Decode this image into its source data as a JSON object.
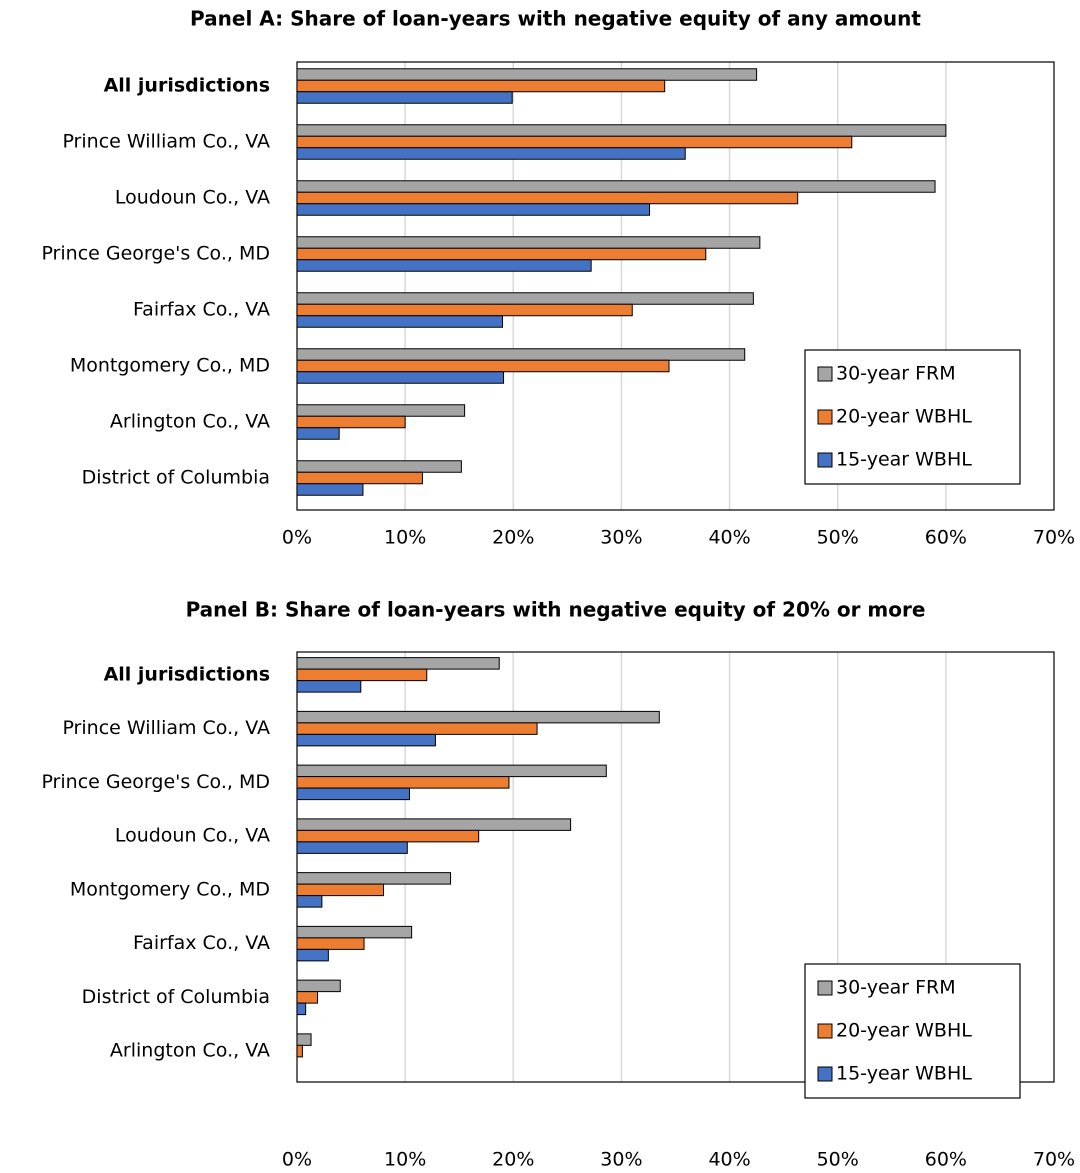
{
  "chart_data": [
    {
      "type": "hbar",
      "title": "Panel A: Share of loan-years with negative equity of any amount",
      "categories": [
        "All jurisdictions",
        "Prince William Co., VA",
        "Loudoun Co., VA",
        "Prince George's Co., MD",
        "Fairfax Co., VA",
        "Montgomery Co., MD",
        "Arlington Co., VA",
        "District of Columbia"
      ],
      "series": [
        {
          "name": "30-year FRM",
          "color": "#a5a5a5",
          "values": [
            42.5,
            60,
            59,
            42.8,
            42.2,
            41.4,
            15.5,
            15.2
          ]
        },
        {
          "name": "20-year WBHL",
          "color": "#ed7d31",
          "values": [
            34,
            51.3,
            46.3,
            37.8,
            31,
            34.4,
            10,
            11.6
          ]
        },
        {
          "name": "15-year WBHL",
          "color": "#4472c4",
          "values": [
            19.9,
            35.9,
            32.6,
            27.2,
            19,
            19.1,
            3.9,
            6.1
          ]
        }
      ],
      "xlim": [
        0,
        70
      ],
      "xticks": [
        {
          "value": 0,
          "label": "0%"
        },
        {
          "value": 10,
          "label": "10%"
        },
        {
          "value": 20,
          "label": "20%"
        },
        {
          "value": 30,
          "label": "30%"
        },
        {
          "value": 40,
          "label": "40%"
        },
        {
          "value": 50,
          "label": "50%"
        },
        {
          "value": 60,
          "label": "60%"
        },
        {
          "value": 70,
          "label": "70%"
        }
      ],
      "grid": true,
      "legend": "lower-right"
    },
    {
      "type": "hbar",
      "title": "Panel B: Share of loan-years with negative equity of 20% or more",
      "categories": [
        "All jurisdictions",
        "Prince William Co., VA",
        "Prince George's Co., MD",
        "Loudoun Co., VA",
        "Montgomery Co., MD",
        "Fairfax Co., VA",
        "District of Columbia",
        "Arlington Co., VA"
      ],
      "series": [
        {
          "name": "30-year FRM",
          "color": "#a5a5a5",
          "values": [
            18.7,
            33.5,
            28.6,
            25.3,
            14.2,
            10.6,
            4,
            1.3
          ]
        },
        {
          "name": "20-year WBHL",
          "color": "#ed7d31",
          "values": [
            12,
            22.2,
            19.6,
            16.8,
            8,
            6.2,
            1.9,
            0.5
          ]
        },
        {
          "name": "15-year WBHL",
          "color": "#4472c4",
          "values": [
            5.9,
            12.8,
            10.4,
            10.2,
            2.3,
            2.9,
            0.8,
            0
          ]
        }
      ],
      "xlim": [
        0,
        70
      ],
      "xticks": [
        {
          "value": 0,
          "label": "0%"
        },
        {
          "value": 10,
          "label": "10%"
        },
        {
          "value": 20,
          "label": "20%"
        },
        {
          "value": 30,
          "label": "30%"
        },
        {
          "value": 40,
          "label": "40%"
        },
        {
          "value": 50,
          "label": "50%"
        },
        {
          "value": 60,
          "label": "60%"
        },
        {
          "value": 70,
          "label": "70%"
        }
      ],
      "grid": true,
      "legend": "lower-right"
    }
  ]
}
